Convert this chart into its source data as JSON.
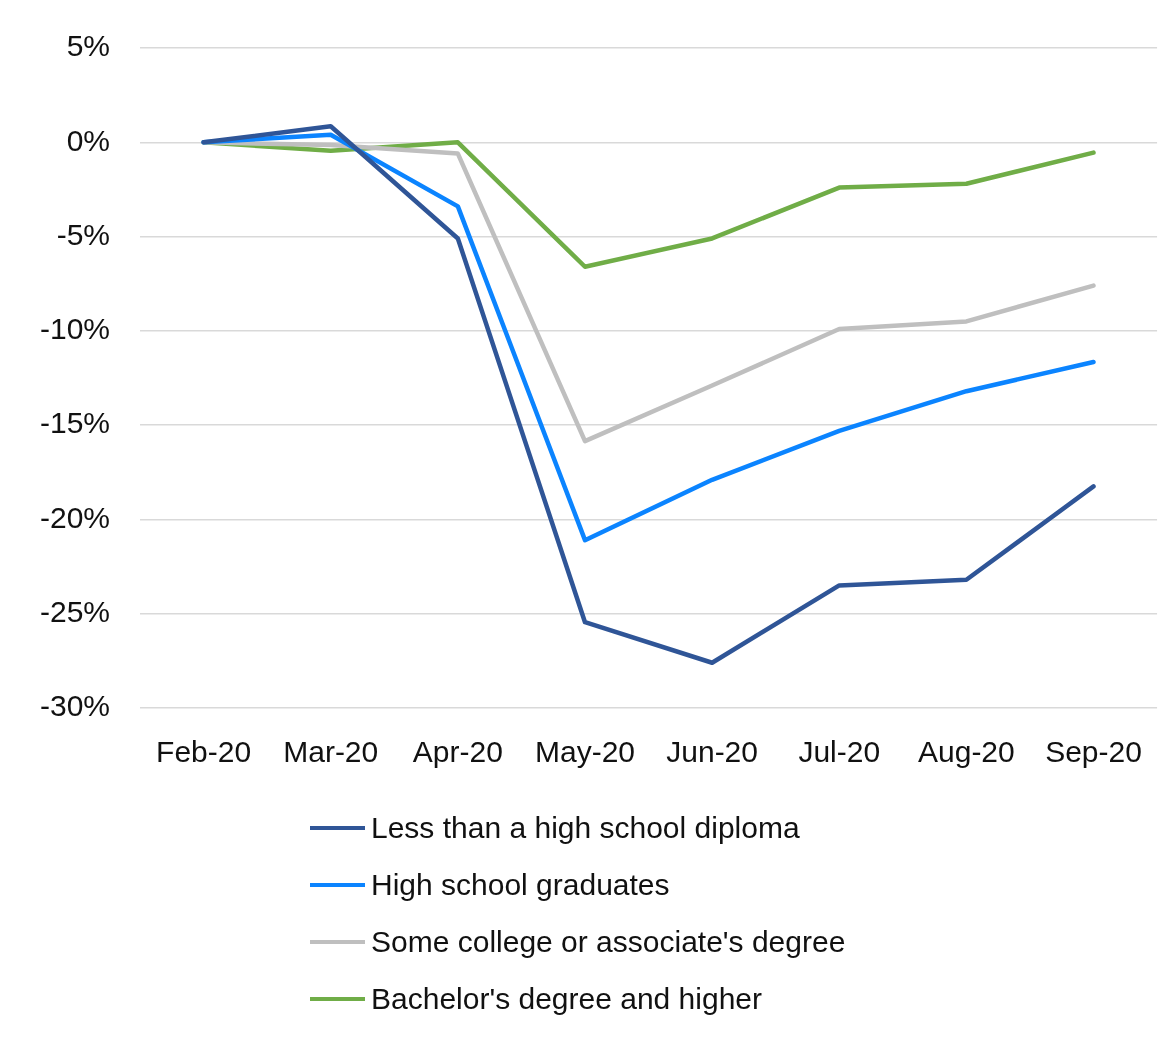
{
  "chart_data": {
    "type": "line",
    "categories": [
      "Feb-20",
      "Mar-20",
      "Apr-20",
      "May-20",
      "Jun-20",
      "Jul-20",
      "Aug-20",
      "Sep-20"
    ],
    "series": [
      {
        "name": "Less than a high school diploma",
        "color": "#2f5597",
        "values": [
          0,
          0.85,
          -5.1,
          -25.45,
          -27.6,
          -23.5,
          -23.2,
          -18.25
        ]
      },
      {
        "name": "High school graduates",
        "color": "#0b84ff",
        "values": [
          0,
          0.4,
          -3.4,
          -21.1,
          -17.9,
          -15.3,
          -13.2,
          -11.65
        ]
      },
      {
        "name": "Some college or associate's degree",
        "color": "#bfbfbf",
        "values": [
          0,
          -0.15,
          -0.6,
          -15.85,
          -12.9,
          -9.9,
          -9.5,
          -7.6
        ]
      },
      {
        "name": "Bachelor's degree and higher",
        "color": "#70ad47",
        "values": [
          0,
          -0.45,
          0,
          -6.6,
          -5.1,
          -2.4,
          -2.2,
          -0.55
        ]
      }
    ],
    "ylim": [
      -30,
      5
    ],
    "yticks": [
      {
        "value": 5,
        "label": "5%"
      },
      {
        "value": 0,
        "label": "0%"
      },
      {
        "value": -5,
        "label": "-5%"
      },
      {
        "value": -10,
        "label": "-10%"
      },
      {
        "value": -15,
        "label": "-15%"
      },
      {
        "value": -20,
        "label": "-20%"
      },
      {
        "value": -25,
        "label": "-25%"
      },
      {
        "value": -30,
        "label": "-30%"
      }
    ],
    "grid": "y",
    "legend": "bottom",
    "marker": "none",
    "line_style": "solid"
  }
}
